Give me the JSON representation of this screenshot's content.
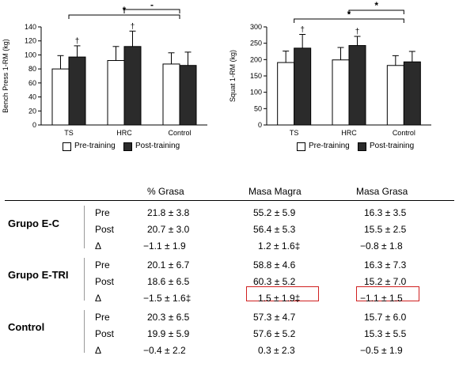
{
  "chart_data": [
    {
      "type": "bar",
      "categories": [
        "TS",
        "HRC",
        "Control"
      ],
      "series": [
        {
          "name": "Pre-training",
          "values": [
            80,
            92,
            87
          ],
          "errors": [
            19,
            20,
            16
          ]
        },
        {
          "name": "Post-training",
          "values": [
            97,
            112,
            85
          ],
          "errors": [
            16,
            22,
            19
          ]
        }
      ],
      "ylabel": "Bench Press 1-RM (kg)",
      "ylim": [
        0,
        140
      ],
      "yticks": [
        0,
        20,
        40,
        60,
        80,
        100,
        120,
        140
      ],
      "dagger_marks": [
        "TS",
        "HRC"
      ],
      "dagger_symbol": "†",
      "brackets": [
        {
          "from": "TS",
          "to": "Control",
          "label": "*"
        },
        {
          "from": "HRC",
          "to": "Control",
          "label": "-"
        }
      ],
      "legend_position": "bottom"
    },
    {
      "type": "bar",
      "categories": [
        "TS",
        "HRC",
        "Control"
      ],
      "series": [
        {
          "name": "Pre-training",
          "values": [
            191,
            199,
            182
          ],
          "errors": [
            35,
            38,
            30
          ]
        },
        {
          "name": "Post-training",
          "values": [
            235,
            243,
            193
          ],
          "errors": [
            42,
            28,
            32
          ]
        }
      ],
      "ylabel": "Squat 1-RM (kg)",
      "ylim": [
        0,
        300
      ],
      "yticks": [
        0,
        50,
        100,
        150,
        200,
        250,
        300
      ],
      "dagger_marks": [
        "TS",
        "HRC"
      ],
      "dagger_symbol": "†",
      "brackets": [
        {
          "from": "TS",
          "to": "Control",
          "label": "*"
        },
        {
          "from": "HRC",
          "to": "Control",
          "label": "*"
        }
      ],
      "legend_position": "bottom"
    }
  ],
  "legend": {
    "pre": "Pre-training",
    "post": "Post-training"
  },
  "table": {
    "headers": [
      "% Grasa",
      "Masa Magra",
      "Masa Grasa"
    ],
    "groups": [
      {
        "name": "Grupo E-C",
        "rows": [
          {
            "label": "Pre",
            "cells": [
              "21.8 ± 3.8",
              "55.2 ± 5.9",
              "16.3 ± 3.5"
            ]
          },
          {
            "label": "Post",
            "cells": [
              "20.7 ± 3.0",
              "56.4 ± 5.3",
              "15.5 ± 2.5"
            ]
          },
          {
            "label": "Δ",
            "cells": [
              "−1.1 ± 1.9",
              "1.2 ± 1.6‡",
              "−0.8 ± 1.8"
            ]
          }
        ]
      },
      {
        "name": "Grupo E-TRI",
        "rows": [
          {
            "label": "Pre",
            "cells": [
              "20.1 ± 6.7",
              "58.8 ± 4.6",
              "16.3 ± 7.3"
            ]
          },
          {
            "label": "Post",
            "cells": [
              "18.6 ± 6.5",
              "60.3 ± 5.2",
              "15.2 ± 7.0"
            ]
          },
          {
            "label": "Δ",
            "cells": [
              "−1.5 ± 1.6‡",
              "1.5 ± 1.9‡",
              "−1.1 ± 1.5"
            ]
          }
        ]
      },
      {
        "name": "Control",
        "rows": [
          {
            "label": "Pre",
            "cells": [
              "20.3 ± 6.5",
              "57.3 ± 4.7",
              "15.7 ± 6.0"
            ]
          },
          {
            "label": "Post",
            "cells": [
              "19.9 ± 5.9",
              "57.6 ± 5.2",
              "15.3 ± 5.5"
            ]
          },
          {
            "label": "Δ",
            "cells": [
              "−0.4 ± 2.2",
              "0.3 ± 2.3",
              "−0.5 ± 1.9"
            ]
          }
        ]
      }
    ],
    "highlighted_cells": [
      "Grupo E-TRI Δ Masa Magra",
      "Grupo E-TRI Δ Masa Grasa"
    ],
    "highlight_color": "#d02020"
  }
}
